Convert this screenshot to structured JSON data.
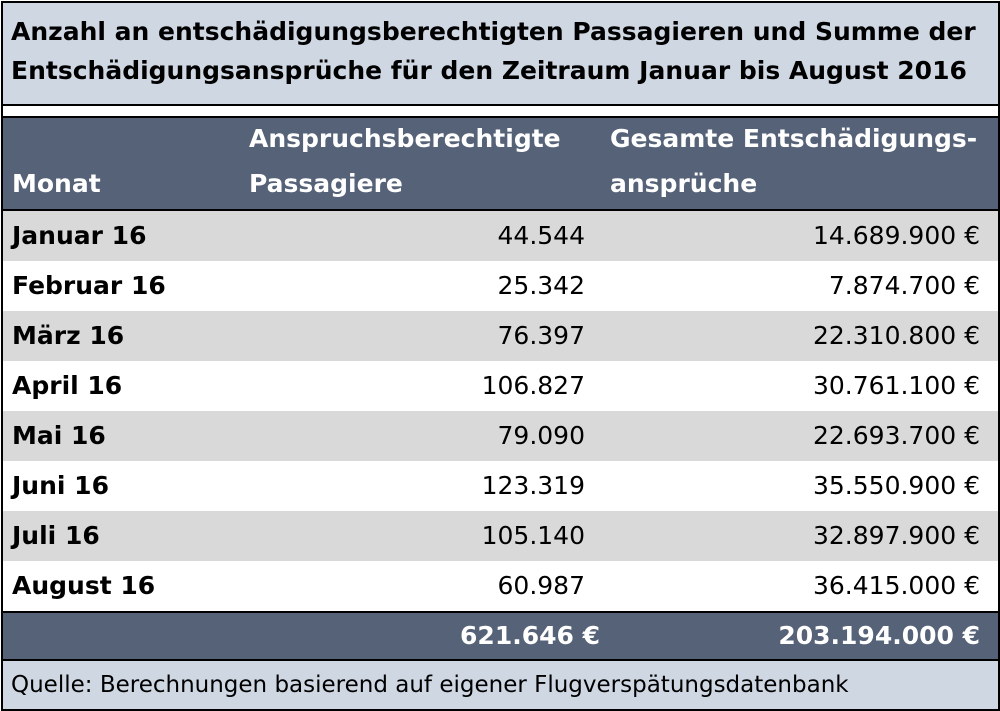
{
  "chart_data": {
    "type": "table",
    "title_lines": [
      "Anzahl an entschädigungsberechtigten Passagieren und Summe der",
      "Entschädigungsansprüche für den Zeitraum Januar bis August 2016"
    ],
    "columns": {
      "month": "Monat",
      "passengers": [
        "Anspruchsberechtigte",
        "Passagiere"
      ],
      "claims": [
        "Gesamte Entschädigungs-",
        "ansprüche"
      ]
    },
    "rows": [
      {
        "month": "Januar 16",
        "passengers": "44.544",
        "claims": "14.689.900 €"
      },
      {
        "month": "Februar 16",
        "passengers": "25.342",
        "claims": "7.874.700 €"
      },
      {
        "month": "März 16",
        "passengers": "76.397",
        "claims": "22.310.800 €"
      },
      {
        "month": "April 16",
        "passengers": "106.827",
        "claims": "30.761.100 €"
      },
      {
        "month": "Mai 16",
        "passengers": "79.090",
        "claims": "22.693.700 €"
      },
      {
        "month": "Juni 16",
        "passengers": "123.319",
        "claims": "35.550.900 €"
      },
      {
        "month": "Juli 16",
        "passengers": "105.140",
        "claims": "32.897.900 €"
      },
      {
        "month": "August 16",
        "passengers": "60.987",
        "claims": "36.415.000 €"
      }
    ],
    "totals": {
      "passengers": "621.646 €",
      "claims": "203.194.000 €"
    },
    "source": "Quelle: Berechnungen basierend auf eigener Flugverspätungsdatenbank"
  },
  "colors": {
    "title_bg": "#cfd7e3",
    "header_bg": "#556277",
    "row_alt_bg": "#d9d9d9"
  }
}
